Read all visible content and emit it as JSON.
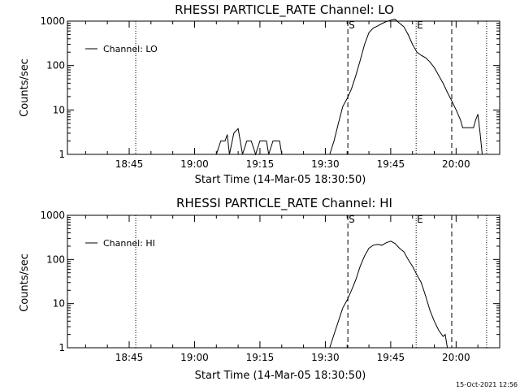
{
  "footer": {
    "timestamp": "15-Oct-2021 12:56"
  },
  "x_ticks": [
    "18:45",
    "19:00",
    "19:15",
    "19:30",
    "19:45",
    "20:00"
  ],
  "markers": {
    "start_label": "S",
    "end_label": "E"
  },
  "chart_data": [
    {
      "type": "line",
      "title": "RHESSI PARTICLE_RATE Channel: LO",
      "xlabel": "Start Time (14-Mar-05 18:30:50)",
      "ylabel": "Counts/sec",
      "yscale": "log",
      "ylim": [
        1,
        1000
      ],
      "y_ticks": [
        "1",
        "10",
        "100",
        "1000"
      ],
      "xlim": [
        "18:30:50",
        "20:10:00"
      ],
      "grid": false,
      "legend_placement": "top-left",
      "series": [
        {
          "name": "Channel: LO",
          "x": [
            "19:05",
            "19:06",
            "19:07",
            "19:07:30",
            "19:08",
            "19:09",
            "19:10",
            "19:11",
            "19:12",
            "19:12:30",
            "19:13",
            "19:14",
            "19:15",
            "19:16",
            "19:16:30",
            "19:17",
            "19:18",
            "19:19",
            "19:19:30",
            "19:20",
            "19:31",
            "19:32",
            "19:33",
            "19:34",
            "19:35",
            "19:36",
            "19:37",
            "19:38",
            "19:39",
            "19:40",
            "19:41",
            "19:42",
            "19:43",
            "19:44",
            "19:45",
            "19:46",
            "19:47",
            "19:48",
            "19:49",
            "19:50",
            "19:51",
            "19:52",
            "19:53",
            "19:54",
            "19:55",
            "19:56",
            "19:57",
            "19:58",
            "19:59",
            "20:00",
            "20:01",
            "20:01:30",
            "20:02",
            "20:03",
            "20:04",
            "20:04:30",
            "20:05",
            "20:05:30",
            "20:06"
          ],
          "y": [
            1,
            2,
            2,
            2.8,
            1,
            3,
            3.8,
            1,
            2,
            2,
            2,
            1,
            2,
            2,
            2,
            1,
            2,
            2,
            2,
            1,
            1,
            2,
            5,
            12,
            18,
            30,
            60,
            130,
            300,
            550,
            700,
            780,
            880,
            980,
            1050,
            1100,
            900,
            750,
            500,
            300,
            200,
            170,
            150,
            120,
            90,
            60,
            40,
            25,
            16,
            10,
            6,
            4,
            4,
            4,
            4,
            6,
            8,
            3,
            1
          ]
        }
      ],
      "vlines": [
        {
          "x": "18:46:30",
          "style": "dotted"
        },
        {
          "x": "19:35:10",
          "style": "dashed",
          "label": "S"
        },
        {
          "x": "19:50:50",
          "style": "dotted",
          "label": "E"
        },
        {
          "x": "19:59:00",
          "style": "dashed"
        },
        {
          "x": "20:07:00",
          "style": "dotted"
        }
      ]
    },
    {
      "type": "line",
      "title": "RHESSI PARTICLE_RATE Channel: HI",
      "xlabel": "Start Time (14-Mar-05 18:30:50)",
      "ylabel": "Counts/sec",
      "yscale": "log",
      "ylim": [
        1,
        1000
      ],
      "y_ticks": [
        "1",
        "10",
        "100",
        "1000"
      ],
      "xlim": [
        "18:30:50",
        "20:10:00"
      ],
      "grid": false,
      "legend_placement": "top-left",
      "series": [
        {
          "name": "Channel: HI",
          "x": [
            "19:31",
            "19:32",
            "19:33",
            "19:34",
            "19:35",
            "19:36",
            "19:37",
            "19:38",
            "19:39",
            "19:40",
            "19:41",
            "19:42",
            "19:43",
            "19:44",
            "19:45",
            "19:46",
            "19:47",
            "19:48",
            "19:49",
            "19:50",
            "19:51",
            "19:52",
            "19:53",
            "19:54",
            "19:55",
            "19:56",
            "19:57",
            "19:57:30",
            "19:58"
          ],
          "y": [
            1,
            2,
            4,
            8,
            12,
            20,
            35,
            70,
            120,
            180,
            210,
            220,
            210,
            240,
            260,
            230,
            180,
            150,
            100,
            70,
            45,
            30,
            15,
            7,
            4,
            2.5,
            1.8,
            2,
            1
          ]
        }
      ],
      "vlines": [
        {
          "x": "18:46:30",
          "style": "dotted"
        },
        {
          "x": "19:35:10",
          "style": "dashed",
          "label": "S"
        },
        {
          "x": "19:50:50",
          "style": "dotted",
          "label": "E"
        },
        {
          "x": "19:59:00",
          "style": "dashed"
        },
        {
          "x": "20:07:00",
          "style": "dotted"
        }
      ]
    }
  ]
}
